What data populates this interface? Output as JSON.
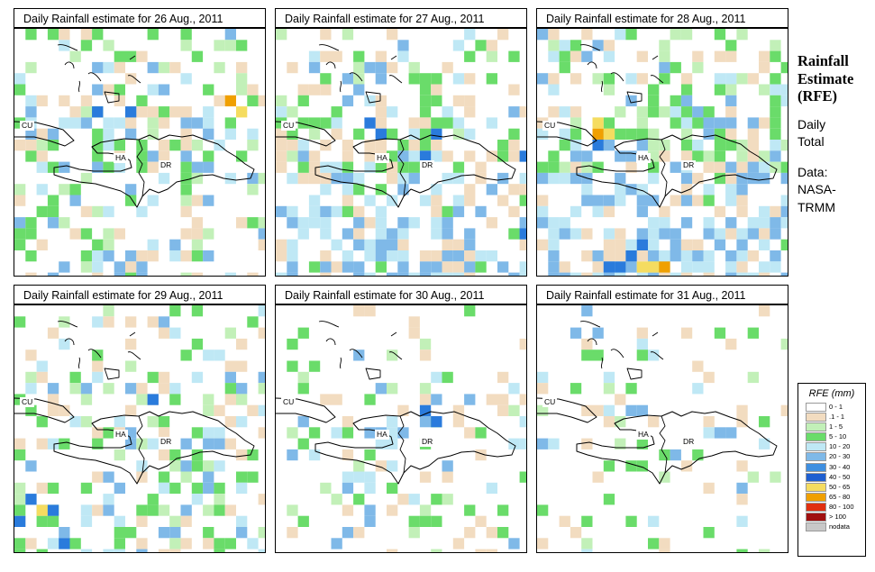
{
  "panels": [
    {
      "title": "Daily Rainfall estimate for  26 Aug., 2011",
      "seed": 26,
      "bias": 0.62,
      "wet_south": 0.15,
      "heavy": [
        [
          7,
          7,
          "#2a7bdc"
        ],
        [
          10,
          7,
          "#2a7bdc"
        ],
        [
          19,
          6,
          "#f0a000"
        ],
        [
          20,
          7,
          "#f5dc60"
        ]
      ]
    },
    {
      "title": "Daily Rainfall estimate for  27 Aug., 2011",
      "seed": 27,
      "bias": 0.7,
      "wet_south": 0.55,
      "heavy": [
        [
          8,
          8,
          "#2a7bdc"
        ],
        [
          9,
          9,
          "#2a7bdc"
        ],
        [
          13,
          11,
          "#2a7bdc"
        ],
        [
          14,
          9,
          "#2a7bdc"
        ],
        [
          22,
          11,
          "#2a7bdc"
        ],
        [
          22,
          18,
          "#2a7bdc"
        ]
      ]
    },
    {
      "title": "Daily Rainfall estimate for  28 Aug., 2011",
      "seed": 28,
      "bias": 0.72,
      "wet_south": 0.75,
      "heavy": [
        [
          5,
          9,
          "#f0a000"
        ],
        [
          5,
          8,
          "#f5dc60"
        ],
        [
          6,
          9,
          "#f5dc60"
        ],
        [
          5,
          10,
          "#2a7bdc"
        ],
        [
          8,
          20,
          "#2a7bdc"
        ],
        [
          9,
          21,
          "#f5dc60"
        ],
        [
          10,
          21,
          "#f5dc60"
        ],
        [
          11,
          21,
          "#f0a000"
        ],
        [
          6,
          21,
          "#2a7bdc"
        ],
        [
          7,
          21,
          "#2a7bdc"
        ],
        [
          9,
          19,
          "#2a7bdc"
        ]
      ]
    },
    {
      "title": "Daily Rainfall estimate for  29 Aug., 2011",
      "seed": 29,
      "bias": 0.55,
      "wet_south": 0.35,
      "heavy": [
        [
          1,
          17,
          "#2a7bdc"
        ],
        [
          2,
          18,
          "#f5dc60"
        ],
        [
          3,
          18,
          "#2a7bdc"
        ],
        [
          4,
          21,
          "#2a7bdc"
        ],
        [
          0,
          19,
          "#2a7bdc"
        ],
        [
          12,
          8,
          "#2a7bdc"
        ]
      ]
    },
    {
      "title": "Daily Rainfall estimate for  30 Aug., 2011",
      "seed": 30,
      "bias": 0.35,
      "wet_south": 0.3,
      "heavy": [
        [
          13,
          9,
          "#2a7bdc"
        ],
        [
          14,
          10,
          "#2a7bdc"
        ]
      ]
    },
    {
      "title": "Daily Rainfall estimate for  31 Aug., 2011",
      "seed": 31,
      "bias": 0.25,
      "wet_south": 0.05,
      "heavy": [
        [
          8,
          9,
          "#7fb9e8"
        ],
        [
          9,
          9,
          "#7fb9e8"
        ]
      ]
    }
  ],
  "map_labels": {
    "cu": "CU",
    "ha": "HA",
    "dr": "DR"
  },
  "side": {
    "title_lines": [
      "Rainfall",
      "Estimate",
      "(RFE)"
    ],
    "daily": "Daily",
    "total": "Total",
    "data_label": "Data:",
    "source1": "NASA-",
    "source2": "TRMM"
  },
  "legend": {
    "title": "RFE (mm)",
    "items": [
      {
        "label": "0 - 1",
        "color": "#ffffff"
      },
      {
        "label": ".1 - 1",
        "color": "#f2dcc0"
      },
      {
        "label": "1 - 5",
        "color": "#c2f0b8"
      },
      {
        "label": "5 - 10",
        "color": "#6adc6a"
      },
      {
        "label": "10 - 20",
        "color": "#bfe8f5"
      },
      {
        "label": "20 - 30",
        "color": "#7fb9e8"
      },
      {
        "label": "30 - 40",
        "color": "#3f8fe0"
      },
      {
        "label": "40 - 50",
        "color": "#1f5fd0"
      },
      {
        "label": "50 - 65",
        "color": "#f5dc60"
      },
      {
        "label": "65 - 80",
        "color": "#f0a000"
      },
      {
        "label": "80 - 100",
        "color": "#e03010"
      },
      {
        "label": "> 100",
        "color": "#a01010"
      },
      {
        "label": "nodata",
        "color": "#c8c8c8"
      }
    ]
  }
}
